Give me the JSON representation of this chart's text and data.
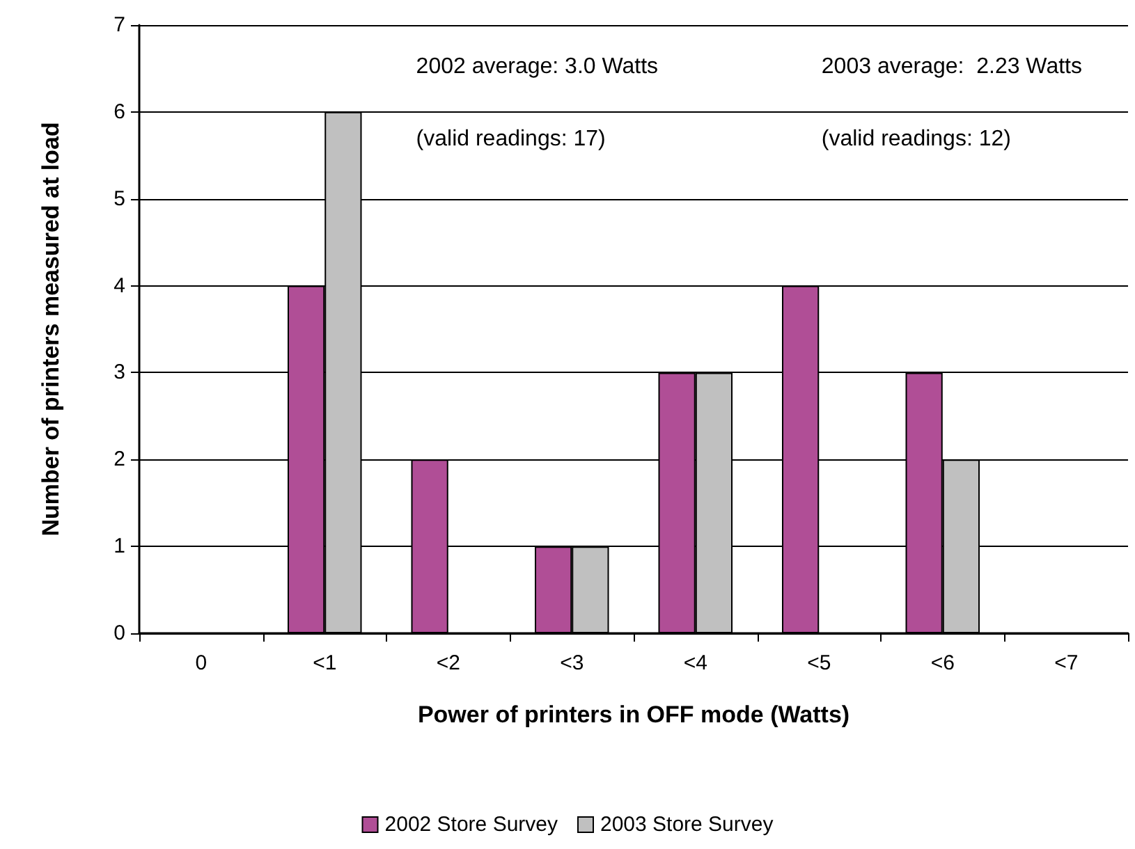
{
  "chart_data": {
    "type": "bar",
    "xlabel": "Power of printers in OFF mode (Watts)",
    "ylabel": "Number of printers measured at load",
    "categories": [
      "0",
      "<1",
      "<2",
      "<3",
      "<4",
      "<5",
      "<6",
      "<7"
    ],
    "series": [
      {
        "name": "2002 Store Survey",
        "color": "#b04e96",
        "values": [
          0,
          4,
          2,
          1,
          3,
          4,
          3,
          0
        ]
      },
      {
        "name": "2003 Store Survey",
        "color": "#c0c0c0",
        "values": [
          0,
          6,
          0,
          1,
          3,
          0,
          2,
          0
        ]
      }
    ],
    "ylim": [
      0,
      7
    ],
    "yticks": [
      0,
      1,
      2,
      3,
      4,
      5,
      6,
      7
    ],
    "grid": "y",
    "legend": "bottom",
    "annotations": [
      "2002 average: 3.0 Watts",
      "2003 average:  2.23 Watts",
      "(valid readings: 17)",
      "(valid readings: 12)"
    ]
  }
}
